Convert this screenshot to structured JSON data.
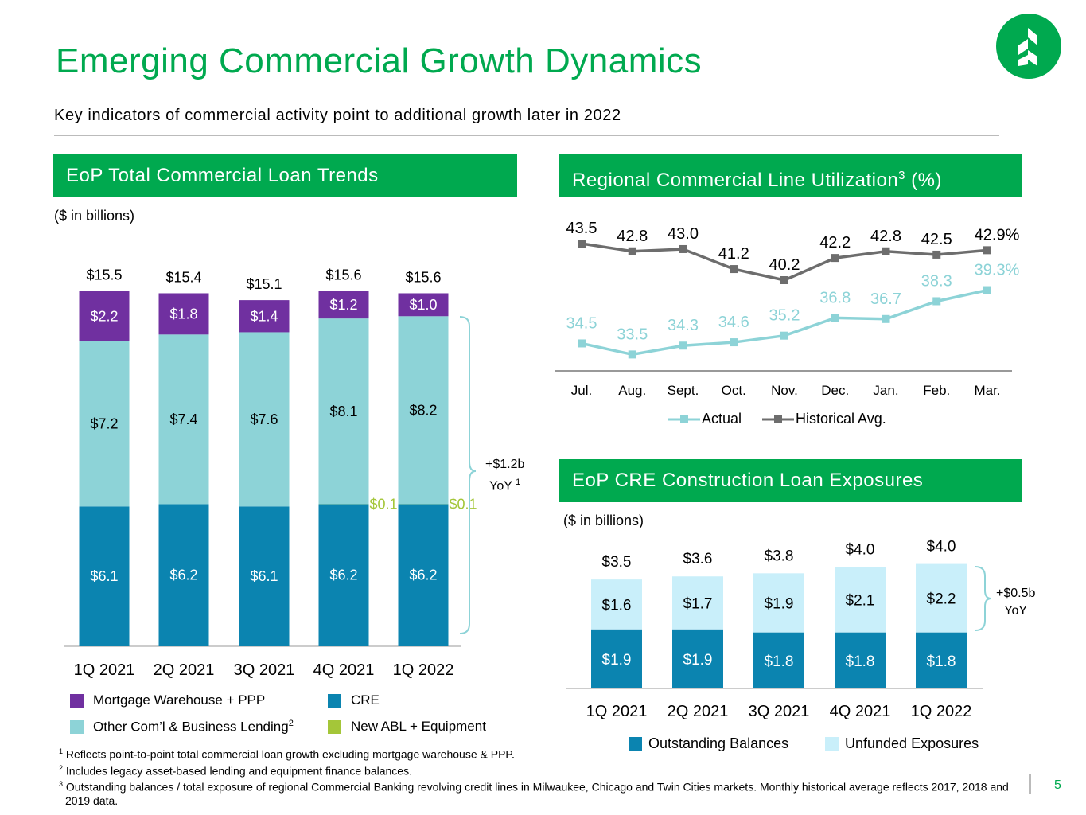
{
  "title": "Emerging Commercial Growth Dynamics",
  "subtitle": "Key indicators of commercial activity point to additional growth later in 2022",
  "page_number": "5",
  "panels": {
    "loan_trends": {
      "header": "EoP Total Commercial Loan Trends",
      "unit": "($ in billions)",
      "annotation_line1": "+$1.2b",
      "annotation_line2": "YoY",
      "annotation_sup": "1",
      "legend": [
        "Mortgage Warehouse + PPP",
        "CRE",
        "Other Com’l & Business Lending",
        "New ABL + Equipment"
      ],
      "legend_sup": "2"
    },
    "utilization": {
      "header": "Regional Commercial Line Utilization",
      "header_sup": "3",
      "header_suffix": " (%)",
      "legend": [
        "Actual",
        "Historical Avg."
      ]
    },
    "cre": {
      "header": "EoP CRE Construction Loan Exposures",
      "unit": "($ in billions)",
      "annotation_line1": "+$0.5b",
      "annotation_line2": "YoY",
      "legend": [
        "Outstanding Balances",
        "Unfunded Exposures"
      ]
    }
  },
  "footnotes": [
    {
      "num": "1",
      "text": "Reflects point-to-point total commercial loan growth excluding mortgage warehouse & PPP."
    },
    {
      "num": "2",
      "text": "Includes legacy asset-based lending and equipment finance balances."
    },
    {
      "num": "3",
      "text": "Outstanding balances / total exposure of regional Commercial Banking revolving credit lines in Milwaukee, Chicago and Twin Cities markets. Monthly historical average reflects 2017, 2018 and 2019 data."
    }
  ],
  "colors": {
    "green": "#00A94F",
    "purple": "#7030A0",
    "other": "#8DD3D7",
    "cre": "#0B84B0",
    "abl": "#A4C639",
    "hist": "#6D6D6D",
    "unfunded": "#C9EFFA"
  },
  "chart_data": [
    {
      "type": "bar",
      "stacked": true,
      "title": "EoP Total Commercial Loan Trends",
      "ylabel": "$ in billions",
      "categories": [
        "1Q 2021",
        "2Q 2021",
        "3Q 2021",
        "4Q 2021",
        "1Q 2022"
      ],
      "series": [
        {
          "name": "CRE",
          "values": [
            6.1,
            6.2,
            6.1,
            6.2,
            6.2
          ],
          "labels": [
            "$6.1",
            "$6.2",
            "$6.1",
            "$6.2",
            "$6.2"
          ]
        },
        {
          "name": "New ABL + Equipment",
          "values": [
            0,
            0,
            0,
            0.1,
            0.1
          ],
          "labels": [
            "",
            "",
            "",
            "$0.1",
            "$0.1"
          ]
        },
        {
          "name": "Other Com’l & Business Lending",
          "values": [
            7.2,
            7.4,
            7.6,
            8.1,
            8.2
          ],
          "labels": [
            "$7.2",
            "$7.4",
            "$7.6",
            "$8.1",
            "$8.2"
          ]
        },
        {
          "name": "Mortgage Warehouse + PPP",
          "values": [
            2.2,
            1.8,
            1.4,
            1.2,
            1.0
          ],
          "labels": [
            "$2.2",
            "$1.8",
            "$1.4",
            "$1.2",
            "$1.0"
          ]
        }
      ],
      "totals": [
        "$15.5",
        "$15.4",
        "$15.1",
        "$15.6",
        "$15.6"
      ]
    },
    {
      "type": "line",
      "title": "Regional Commercial Line Utilization (%)",
      "categories": [
        "Jul.",
        "Aug.",
        "Sept.",
        "Oct.",
        "Nov.",
        "Dec.",
        "Jan.",
        "Feb.",
        "Mar."
      ],
      "series": [
        {
          "name": "Actual",
          "values": [
            34.5,
            33.5,
            34.3,
            34.6,
            35.2,
            36.8,
            36.7,
            38.3,
            39.3
          ],
          "labels": [
            "34.5",
            "33.5",
            "34.3",
            "34.6",
            "35.2",
            "36.8",
            "36.7",
            "38.3",
            "39.3%"
          ]
        },
        {
          "name": "Historical Avg.",
          "values": [
            43.5,
            42.8,
            43.0,
            41.2,
            40.2,
            42.2,
            42.8,
            42.5,
            42.9
          ],
          "labels": [
            "43.5",
            "42.8",
            "43.0",
            "41.2",
            "40.2",
            "42.2",
            "42.8",
            "42.5",
            "42.9%"
          ]
        }
      ]
    },
    {
      "type": "bar",
      "stacked": true,
      "title": "EoP CRE Construction Loan Exposures",
      "ylabel": "$ in billions",
      "categories": [
        "1Q 2021",
        "2Q 2021",
        "3Q 2021",
        "4Q 2021",
        "1Q 2022"
      ],
      "series": [
        {
          "name": "Outstanding Balances",
          "values": [
            1.9,
            1.9,
            1.8,
            1.8,
            1.8
          ],
          "labels": [
            "$1.9",
            "$1.9",
            "$1.8",
            "$1.8",
            "$1.8"
          ]
        },
        {
          "name": "Unfunded Exposures",
          "values": [
            1.6,
            1.7,
            1.9,
            2.1,
            2.2
          ],
          "labels": [
            "$1.6",
            "$1.7",
            "$1.9",
            "$2.1",
            "$2.2"
          ]
        }
      ],
      "totals": [
        "$3.5",
        "$3.6",
        "$3.8",
        "$4.0",
        "$4.0"
      ]
    }
  ]
}
